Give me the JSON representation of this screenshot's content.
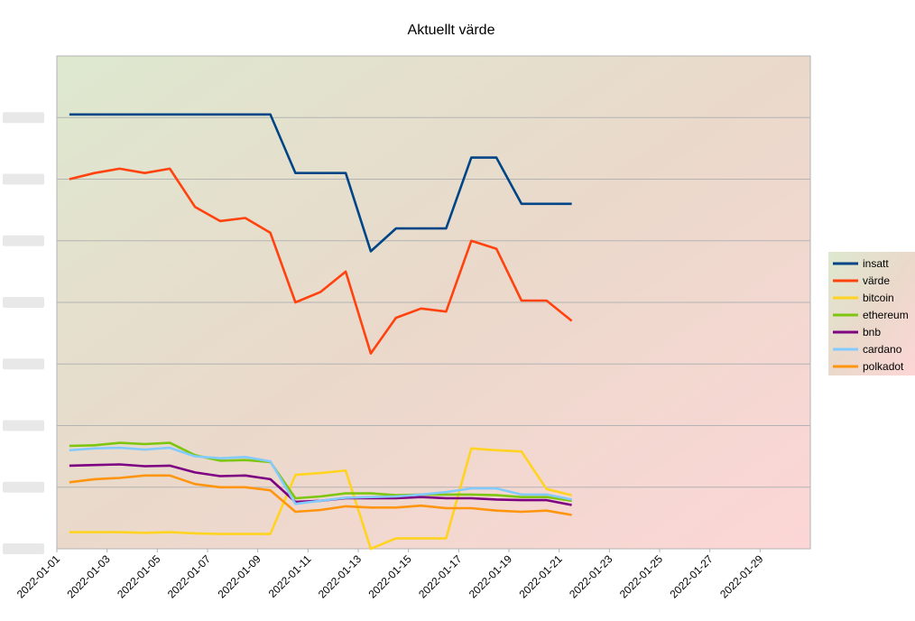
{
  "chart_data": {
    "type": "line",
    "title": "Aktuellt värde",
    "xlabel": "",
    "ylabel": "",
    "x_axis": {
      "start": "2022-01-01",
      "end": "2022-01-31",
      "tick_labels": [
        "2022-01-01",
        "2022-01-03",
        "2022-01-05",
        "2022-01-07",
        "2022-01-09",
        "2022-01-11",
        "2022-01-13",
        "2022-01-15",
        "2022-01-17",
        "2022-01-19",
        "2022-01-21",
        "2022-01-23",
        "2022-01-25",
        "2022-01-27",
        "2022-01-29"
      ]
    },
    "y_axis": {
      "range": [
        0,
        8
      ],
      "tick_labels_obscured": true,
      "gridlines": 8
    },
    "grid": true,
    "legend_position": "right",
    "x": [
      "2022-01-01",
      "2022-01-02",
      "2022-01-03",
      "2022-01-04",
      "2022-01-05",
      "2022-01-06",
      "2022-01-07",
      "2022-01-08",
      "2022-01-09",
      "2022-01-10",
      "2022-01-11",
      "2022-01-12",
      "2022-01-13",
      "2022-01-14",
      "2022-01-15",
      "2022-01-16",
      "2022-01-17",
      "2022-01-18",
      "2022-01-19",
      "2022-01-20",
      "2022-01-21"
    ],
    "series": [
      {
        "name": "insatt",
        "color": "#004586",
        "values": [
          7.05,
          7.05,
          7.05,
          7.05,
          7.05,
          7.05,
          7.05,
          7.05,
          7.05,
          6.1,
          6.1,
          6.1,
          4.83,
          5.2,
          5.2,
          5.2,
          6.35,
          6.35,
          5.6,
          5.6,
          5.6
        ]
      },
      {
        "name": "värde",
        "color": "#ff420e",
        "values": [
          6.0,
          6.1,
          6.17,
          6.1,
          6.17,
          5.55,
          5.32,
          5.37,
          5.13,
          4.0,
          4.17,
          4.5,
          3.17,
          3.75,
          3.9,
          3.85,
          5.0,
          4.87,
          4.03,
          4.03,
          3.7
        ]
      },
      {
        "name": "bitcoin",
        "color": "#ffd320",
        "values": [
          0.27,
          0.27,
          0.27,
          0.26,
          0.27,
          0.25,
          0.24,
          0.24,
          0.24,
          1.2,
          1.23,
          1.27,
          0.0,
          0.17,
          0.17,
          0.17,
          1.63,
          1.6,
          1.58,
          0.97,
          0.87
        ]
      },
      {
        "name": "ethereum",
        "color": "#7ec50e",
        "values": [
          1.67,
          1.68,
          1.72,
          1.7,
          1.72,
          1.52,
          1.43,
          1.44,
          1.41,
          0.82,
          0.85,
          0.9,
          0.9,
          0.87,
          0.88,
          0.88,
          0.88,
          0.87,
          0.84,
          0.84,
          0.78
        ]
      },
      {
        "name": "bnb",
        "color": "#7e0082",
        "values": [
          1.35,
          1.36,
          1.37,
          1.34,
          1.35,
          1.24,
          1.18,
          1.19,
          1.13,
          0.76,
          0.78,
          0.82,
          0.82,
          0.82,
          0.84,
          0.82,
          0.82,
          0.8,
          0.79,
          0.79,
          0.71
        ]
      },
      {
        "name": "cardano",
        "color": "#83caff",
        "values": [
          1.6,
          1.63,
          1.64,
          1.61,
          1.64,
          1.5,
          1.47,
          1.49,
          1.42,
          0.73,
          0.78,
          0.83,
          0.84,
          0.85,
          0.88,
          0.92,
          0.98,
          0.98,
          0.88,
          0.88,
          0.8
        ]
      },
      {
        "name": "polkadot",
        "color": "#ff950e",
        "values": [
          1.08,
          1.13,
          1.15,
          1.19,
          1.19,
          1.05,
          1.0,
          1.0,
          0.95,
          0.6,
          0.63,
          0.69,
          0.67,
          0.67,
          0.7,
          0.66,
          0.66,
          0.62,
          0.6,
          0.62,
          0.55
        ]
      }
    ]
  }
}
